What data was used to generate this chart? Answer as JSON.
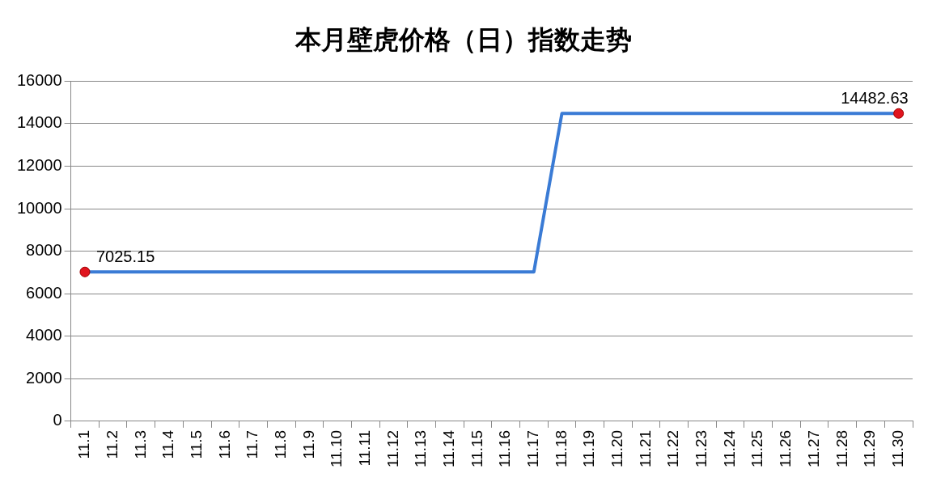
{
  "chart_data": {
    "type": "line",
    "title": "本月壁虎价格（日）指数走势",
    "categories": [
      "11.1",
      "11.2",
      "11.3",
      "11.4",
      "11.5",
      "11.6",
      "11.7",
      "11.8",
      "11.9",
      "11.10",
      "11.11",
      "11.12",
      "11.13",
      "11.14",
      "11.15",
      "11.16",
      "11.17",
      "11.18",
      "11.19",
      "11.20",
      "11.21",
      "11.22",
      "11.23",
      "11.24",
      "11.25",
      "11.26",
      "11.27",
      "11.28",
      "11.29",
      "11.30"
    ],
    "series": [
      {
        "color": "#3a7bd5",
        "marker": "none",
        "values": [
          7025.15,
          7025.15,
          7025.15,
          7025.15,
          7025.15,
          7025.15,
          7025.15,
          7025.15,
          7025.15,
          7025.15,
          7025.15,
          7025.15,
          7025.15,
          7025.15,
          7025.15,
          7025.15,
          7025.15,
          14482.63,
          14482.63,
          14482.63,
          14482.63,
          14482.63,
          14482.63,
          14482.63,
          14482.63,
          14482.63,
          14482.63,
          14482.63,
          14482.63,
          14482.63
        ]
      },
      {
        "type": "scatter",
        "color": "#e0141e",
        "marker": "circle",
        "x": [
          "11.1",
          "11.30"
        ],
        "values": [
          7025.15,
          14482.63
        ],
        "value_labels": [
          "7025.15",
          "14482.63"
        ]
      }
    ],
    "ylim": [
      0,
      16000
    ],
    "yticks": [
      0,
      2000,
      4000,
      6000,
      8000,
      10000,
      12000,
      14000,
      16000
    ],
    "grid": "y",
    "legend": false
  }
}
